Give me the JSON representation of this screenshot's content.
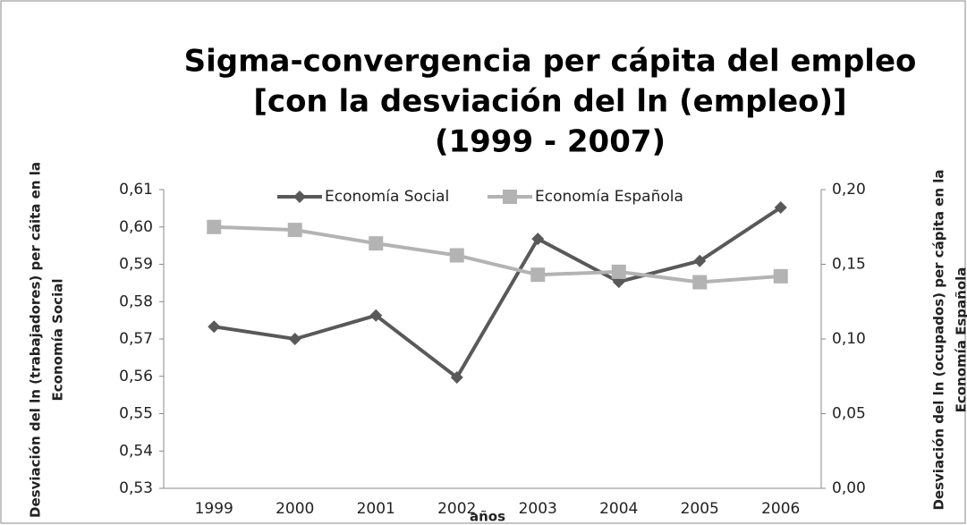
{
  "chart_data": {
    "type": "line",
    "title": [
      "Sigma-convergencia per cápita del empleo",
      "[con la desviación del ln (empleo)]",
      "(1999 - 2007)"
    ],
    "x_label": "años",
    "y_label": [
      "Desviación del ln (trabajadores) per cáita en la",
      "Economía Social"
    ],
    "y2_label": [
      "Desviación del ln (ocupados) per cápita en la",
      "Economía Española"
    ],
    "categories": [
      "1999",
      "2000",
      "2001",
      "2002",
      "2003",
      "2004",
      "2005",
      "2006"
    ],
    "series": [
      {
        "name": "Economía Social",
        "color": "#595959",
        "marker": "diamond",
        "values": [
          0.5733,
          0.57,
          0.5763,
          0.5597,
          0.5968,
          0.5853,
          0.5909,
          0.6052
        ]
      },
      {
        "name": "Economía Española",
        "color": "#b3b3b3",
        "marker": "square",
        "axis": "y2",
        "values": [
          0.175,
          0.173,
          0.164,
          0.156,
          0.143,
          0.145,
          0.138,
          0.142
        ]
      }
    ],
    "ylim": [
      0.53,
      0.61
    ],
    "yticks": [
      {
        "value": 0.53,
        "label": "0,53"
      },
      {
        "value": 0.54,
        "label": "0,54"
      },
      {
        "value": 0.55,
        "label": "0,55"
      },
      {
        "value": 0.56,
        "label": "0,56"
      },
      {
        "value": 0.57,
        "label": "0,57"
      },
      {
        "value": 0.58,
        "label": "0,58"
      },
      {
        "value": 0.59,
        "label": "0,59"
      },
      {
        "value": 0.6,
        "label": "0,60"
      },
      {
        "value": 0.61,
        "label": "0,61"
      }
    ],
    "y2lim": [
      0,
      0.2
    ],
    "y2ticks": [
      {
        "value": 0,
        "label": "0,00"
      },
      {
        "value": 0.05,
        "label": "0,05"
      },
      {
        "value": 0.1,
        "label": "0,10"
      },
      {
        "value": 0.15,
        "label": "0,15"
      },
      {
        "value": 0.2,
        "label": "0,20"
      }
    ],
    "legend": "top"
  }
}
